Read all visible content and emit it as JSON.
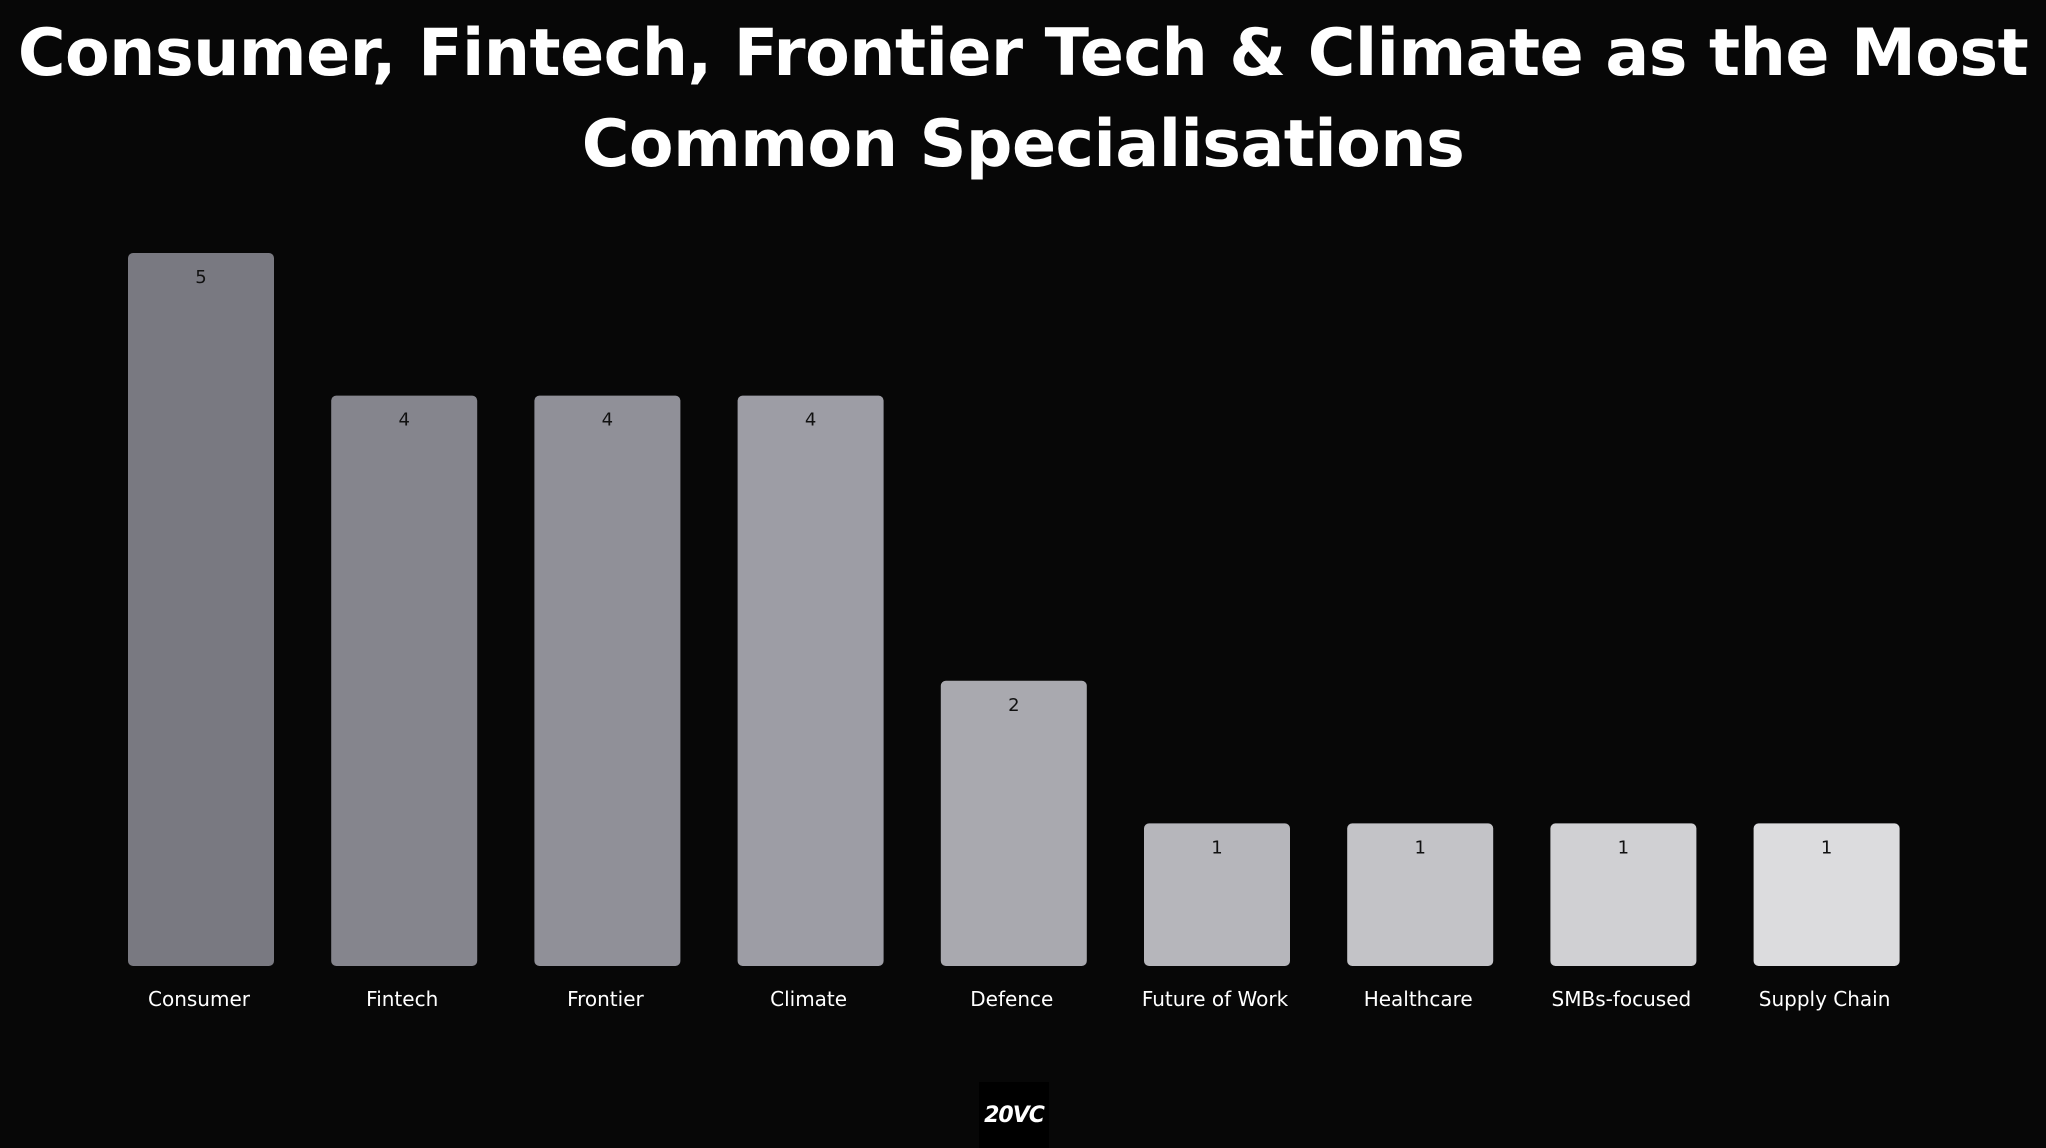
{
  "chart_data": {
    "type": "bar",
    "title_lines": [
      "Consumer, Fintech, Frontier Tech & Climate as the Most",
      "Common Specialisations"
    ],
    "categories": [
      "Consumer",
      "Fintech",
      "Frontier",
      "Climate",
      "Defence",
      "Future of Work",
      "Healthcare",
      "SMBs-focused",
      "Supply Chain"
    ],
    "values": [
      5,
      4,
      4,
      4,
      2,
      1,
      1,
      1,
      1
    ],
    "data_labels": [
      "5",
      "4",
      "4",
      "4",
      "2",
      "1",
      "1",
      "1",
      "1"
    ],
    "bar_colors": [
      "#797981",
      "#85858d",
      "#909098",
      "#9d9da5",
      "#a9a9af",
      "#b6b6bb",
      "#c3c3c7",
      "#d0d0d3",
      "#dcdcde"
    ],
    "ylim": [
      0,
      5
    ],
    "grid": false,
    "legend": "none",
    "xlabel": "",
    "ylabel": ""
  },
  "branding": {
    "logo_text": "20VC"
  },
  "colors": {
    "background": "#070707",
    "title": "#ffffff",
    "category_label": "#ffffff",
    "data_label": "#111111"
  }
}
